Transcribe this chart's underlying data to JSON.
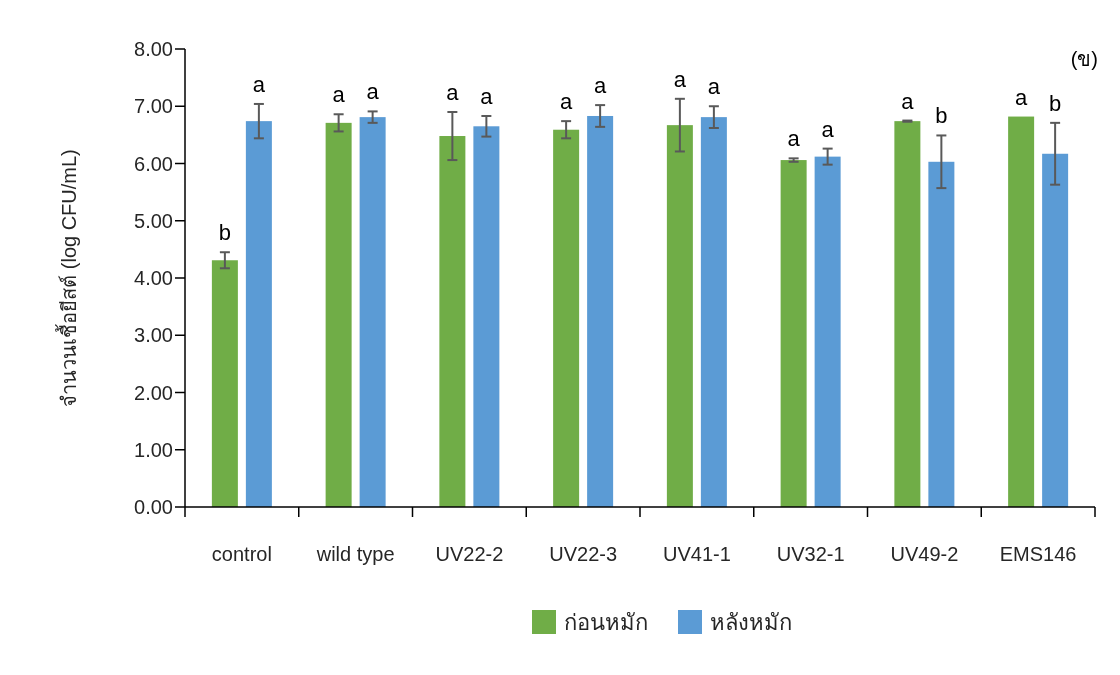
{
  "chart_data": {
    "type": "bar",
    "ylabel": "จำนวนเชื้อยีสต์ (log CFU/mL)",
    "categories": [
      "control",
      "wild type",
      "UV22-2",
      "UV22-3",
      "UV41-1",
      "UV32-1",
      "UV49-2",
      "EMS146"
    ],
    "series": [
      {
        "name": "ก่อนหมัก",
        "color": "#70ad47",
        "values": [
          4.31,
          6.71,
          6.48,
          6.59,
          6.67,
          6.06,
          6.74,
          6.82
        ],
        "errors": [
          0.14,
          0.15,
          0.42,
          0.15,
          0.46,
          0.03,
          0.01,
          null
        ],
        "value_labels": [
          "b",
          "a",
          "a",
          "a",
          "a",
          "a",
          "a",
          "a"
        ]
      },
      {
        "name": "หลังหมัก",
        "color": "#5b9bd5",
        "values": [
          6.74,
          6.81,
          6.65,
          6.83,
          6.81,
          6.12,
          6.03,
          6.17
        ],
        "errors": [
          0.3,
          0.1,
          0.18,
          0.19,
          0.19,
          0.14,
          0.46,
          0.54
        ],
        "value_labels": [
          "a",
          "a",
          "a",
          "a",
          "a",
          "a",
          "b",
          "b"
        ]
      }
    ],
    "ylim": [
      0,
      8
    ],
    "yticks": [
      {
        "value": 0,
        "label": "0.00"
      },
      {
        "value": 1,
        "label": "1.00"
      },
      {
        "value": 2,
        "label": "2.00"
      },
      {
        "value": 3,
        "label": "3.00"
      },
      {
        "value": 4,
        "label": "4.00"
      },
      {
        "value": 5,
        "label": "5.00"
      },
      {
        "value": 6,
        "label": "6.00"
      },
      {
        "value": 7,
        "label": "7.00"
      },
      {
        "value": 8,
        "label": "8.00"
      }
    ],
    "grid": false,
    "legend": "bottom",
    "annotations": [
      "(ข)"
    ]
  }
}
